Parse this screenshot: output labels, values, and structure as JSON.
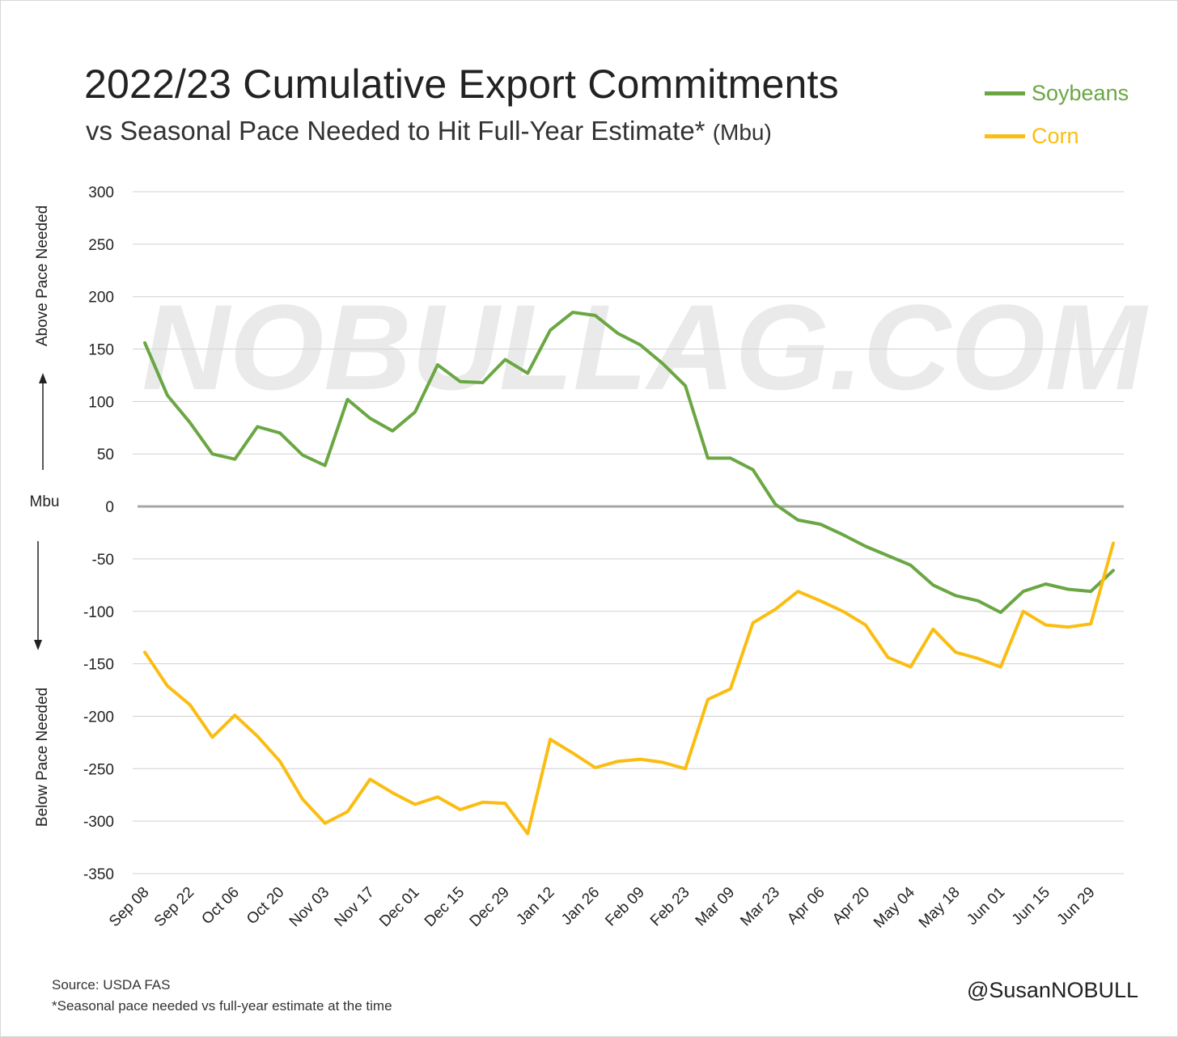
{
  "header": {
    "title": "2022/23 Cumulative Export Commitments",
    "subtitle": "vs Seasonal Pace Needed to Hit Full-Year Estimate*",
    "subtitle_unit": "(Mbu)"
  },
  "watermark": "NOBULLAG.COM",
  "footer": {
    "source": "Source: USDA FAS",
    "footnote": "*Seasonal pace needed vs full-year estimate at the time",
    "handle": "@SusanNOBULL"
  },
  "colors": {
    "soybeans": "#6aa743",
    "corn": "#fbbd12",
    "zero_line": "#a6a6a6",
    "grid": "#d0d0d0"
  },
  "chart_data": {
    "type": "line",
    "title": "2022/23 Cumulative Export Commitments",
    "subtitle": "vs Seasonal Pace Needed to Hit Full-Year Estimate* (Mbu)",
    "ylabel": "Mbu",
    "ylabel_above": "Above Pace Needed",
    "ylabel_below": "Below Pace Needed",
    "ylim": [
      -350,
      300
    ],
    "yticks": [
      300,
      250,
      200,
      150,
      100,
      50,
      0,
      -50,
      -100,
      -150,
      -200,
      -250,
      -300,
      -350
    ],
    "grid": true,
    "legend_position": "top-right",
    "x_tick_labels": [
      "Sep 08",
      "Sep 22",
      "Oct 06",
      "Oct 20",
      "Nov 03",
      "Nov 17",
      "Dec 01",
      "Dec 15",
      "Dec 29",
      "Jan 12",
      "Jan 26",
      "Feb 09",
      "Feb 23",
      "Mar 09",
      "Mar 23",
      "Apr 06",
      "Apr 20",
      "May 04",
      "May 18",
      "Jun 01",
      "Jun 15",
      "Jun 29"
    ],
    "x": [
      "Sep 08",
      "Sep 15",
      "Sep 22",
      "Sep 29",
      "Oct 06",
      "Oct 13",
      "Oct 20",
      "Oct 27",
      "Nov 03",
      "Nov 10",
      "Nov 17",
      "Nov 24",
      "Dec 01",
      "Dec 08",
      "Dec 15",
      "Dec 22",
      "Dec 29",
      "Jan 05",
      "Jan 12",
      "Jan 19",
      "Jan 26",
      "Feb 02",
      "Feb 09",
      "Feb 16",
      "Feb 23",
      "Mar 02",
      "Mar 09",
      "Mar 16",
      "Mar 23",
      "Mar 30",
      "Apr 06",
      "Apr 13",
      "Apr 20",
      "Apr 27",
      "May 04",
      "May 11",
      "May 18",
      "May 25",
      "Jun 01",
      "Jun 08",
      "Jun 15",
      "Jun 22",
      "Jun 29",
      "Jul 06"
    ],
    "series": [
      {
        "name": "Soybeans",
        "color": "#6aa743",
        "values": [
          156,
          106,
          80,
          50,
          45,
          76,
          70,
          49,
          39,
          102,
          84,
          72,
          90,
          135,
          119,
          118,
          140,
          127,
          168,
          185,
          182,
          165,
          154,
          136,
          115,
          46,
          46,
          35,
          2,
          -13,
          -17,
          -27,
          -38,
          -47,
          -56,
          -75,
          -85,
          -90,
          -101,
          -81,
          -74,
          -79,
          -81,
          -61
        ]
      },
      {
        "name": "Corn",
        "color": "#fbbd12",
        "values": [
          -139,
          -171,
          -189,
          -220,
          -199,
          -219,
          -243,
          -279,
          -302,
          -291,
          -260,
          -273,
          -284,
          -277,
          -289,
          -282,
          -283,
          -312,
          -222,
          -235,
          -249,
          -243,
          -241,
          -244,
          -250,
          -184,
          -174,
          -111,
          -98,
          -81,
          -90,
          -100,
          -113,
          -144,
          -153,
          -117,
          -139,
          -145,
          -153,
          -100,
          -113,
          -115,
          -112,
          -35
        ]
      }
    ]
  }
}
